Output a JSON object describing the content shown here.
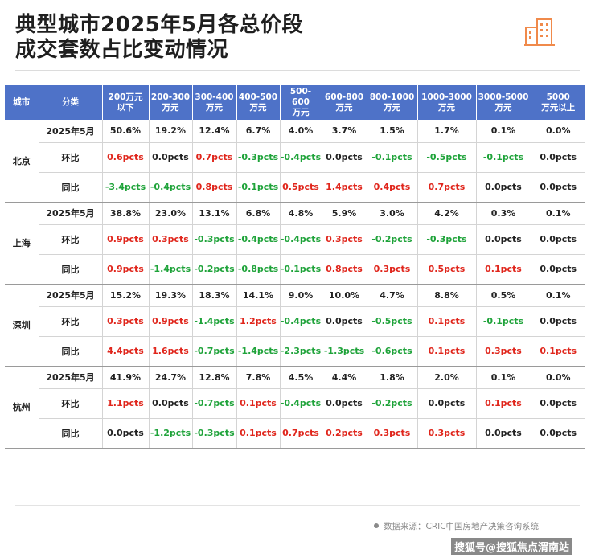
{
  "title": {
    "line1": "典型城市2025年5月各总价段",
    "line2": "成交套数占比变动情况"
  },
  "colors": {
    "header_bg": "#4e72c8",
    "positive": "#e0261c",
    "negative": "#1fa33a",
    "neutral": "#222222",
    "logo": "#f08a4b"
  },
  "table": {
    "headers": [
      [
        "城市"
      ],
      [
        "分类"
      ],
      [
        "200万元",
        "以下"
      ],
      [
        "200-300",
        "万元"
      ],
      [
        "300-400",
        "万元"
      ],
      [
        "400-500",
        "万元"
      ],
      [
        "500-600",
        "万元"
      ],
      [
        "600-800",
        "万元"
      ],
      [
        "800-1000",
        "万元"
      ],
      [
        "1000-3000",
        "万元"
      ],
      [
        "3000-5000",
        "万元"
      ],
      [
        "5000",
        "万元以上"
      ]
    ],
    "groups": [
      {
        "city": "北京",
        "rows": [
          {
            "label": "2025年5月",
            "values": [
              "50.6%",
              "19.2%",
              "12.4%",
              "6.7%",
              "4.0%",
              "3.7%",
              "1.5%",
              "1.7%",
              "0.1%",
              "0.0%"
            ]
          },
          {
            "label": "环比",
            "values": [
              "0.6pcts",
              "0.0pcts",
              "0.7pcts",
              "-0.3pcts",
              "-0.4pcts",
              "0.0pcts",
              "-0.1pcts",
              "-0.5pcts",
              "-0.1pcts",
              "0.0pcts"
            ]
          },
          {
            "label": "同比",
            "values": [
              "-3.4pcts",
              "-0.4pcts",
              "0.8pcts",
              "-0.1pcts",
              "0.5pcts",
              "1.4pcts",
              "0.4pcts",
              "0.7pcts",
              "0.0pcts",
              "0.0pcts"
            ]
          }
        ]
      },
      {
        "city": "上海",
        "rows": [
          {
            "label": "2025年5月",
            "values": [
              "38.8%",
              "23.0%",
              "13.1%",
              "6.8%",
              "4.8%",
              "5.9%",
              "3.0%",
              "4.2%",
              "0.3%",
              "0.1%"
            ]
          },
          {
            "label": "环比",
            "values": [
              "0.9pcts",
              "0.3pcts",
              "-0.3pcts",
              "-0.4pcts",
              "-0.4pcts",
              "0.3pcts",
              "-0.2pcts",
              "-0.3pcts",
              "0.0pcts",
              "0.0pcts"
            ]
          },
          {
            "label": "同比",
            "values": [
              "0.9pcts",
              "-1.4pcts",
              "-0.2pcts",
              "-0.8pcts",
              "-0.1pcts",
              "0.8pcts",
              "0.3pcts",
              "0.5pcts",
              "0.1pcts",
              "0.0pcts"
            ]
          }
        ]
      },
      {
        "city": "深圳",
        "rows": [
          {
            "label": "2025年5月",
            "values": [
              "15.2%",
              "19.3%",
              "18.3%",
              "14.1%",
              "9.0%",
              "10.0%",
              "4.7%",
              "8.8%",
              "0.5%",
              "0.1%"
            ]
          },
          {
            "label": "环比",
            "values": [
              "0.3pcts",
              "0.9pcts",
              "-1.4pcts",
              "1.2pcts",
              "-0.4pcts",
              "0.0pcts",
              "-0.5pcts",
              "0.1pcts",
              "-0.1pcts",
              "0.0pcts"
            ]
          },
          {
            "label": "同比",
            "values": [
              "4.4pcts",
              "1.6pcts",
              "-0.7pcts",
              "-1.4pcts",
              "-2.3pcts",
              "-1.3pcts",
              "-0.6pcts",
              "0.1pcts",
              "0.3pcts",
              "0.1pcts"
            ]
          }
        ]
      },
      {
        "city": "杭州",
        "rows": [
          {
            "label": "2025年5月",
            "values": [
              "41.9%",
              "24.7%",
              "12.8%",
              "7.8%",
              "4.5%",
              "4.4%",
              "1.8%",
              "2.0%",
              "0.1%",
              "0.0%"
            ]
          },
          {
            "label": "环比",
            "values": [
              "1.1pcts",
              "0.0pcts",
              "-0.7pcts",
              "0.1pcts",
              "-0.4pcts",
              "0.0pcts",
              "-0.2pcts",
              "0.0pcts",
              "0.1pcts",
              "0.0pcts"
            ]
          },
          {
            "label": "同比",
            "values": [
              "0.0pcts",
              "-1.2pcts",
              "-0.3pcts",
              "0.1pcts",
              "0.7pcts",
              "0.2pcts",
              "0.3pcts",
              "0.3pcts",
              "0.0pcts",
              "0.0pcts"
            ]
          }
        ]
      }
    ]
  },
  "source": "数据来源：CRIC中国房地产决策咨询系统",
  "watermark": "搜狐号@搜狐焦点渭南站"
}
